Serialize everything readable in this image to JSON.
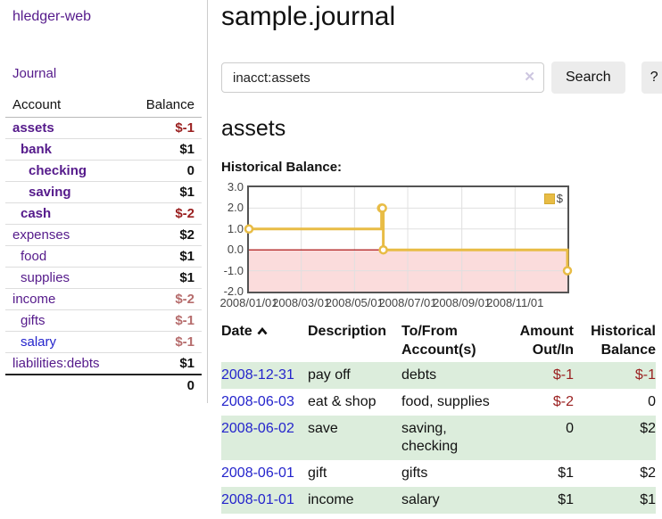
{
  "colors": {
    "purple": "#551a8b",
    "blue": "#2424cc",
    "negative": "#9a1f1f",
    "negative_faded": "#b66c6c",
    "row_green": "#dceddc",
    "chart_line": "#e8bc45",
    "chart_marker_fill": "#ffffff",
    "chart_negative_fill": "#fbdcdc",
    "chart_zero_line": "#a40000",
    "grid_line": "#e0e0e0"
  },
  "sidebar": {
    "brand": "hledger-web",
    "nav_journal": "Journal",
    "col_account": "Account",
    "col_balance": "Balance",
    "accounts": [
      {
        "name": "assets",
        "indent": 0,
        "bold": true,
        "balance": "$-1",
        "balance_style": "neg"
      },
      {
        "name": "bank",
        "indent": 1,
        "bold": true,
        "balance": "$1",
        "balance_style": "pos"
      },
      {
        "name": "checking",
        "indent": 2,
        "bold": true,
        "balance": "0",
        "balance_style": "pos"
      },
      {
        "name": "saving",
        "indent": 2,
        "bold": true,
        "balance": "$1",
        "balance_style": "pos"
      },
      {
        "name": "cash",
        "indent": 1,
        "bold": true,
        "balance": "$-2",
        "balance_style": "neg"
      },
      {
        "name": "expenses",
        "indent": 0,
        "bold": false,
        "balance": "$2",
        "balance_style": "pos"
      },
      {
        "name": "food",
        "indent": 1,
        "bold": false,
        "balance": "$1",
        "balance_style": "pos"
      },
      {
        "name": "supplies",
        "indent": 1,
        "bold": false,
        "balance": "$1",
        "balance_style": "pos"
      },
      {
        "name": "income",
        "indent": 0,
        "bold": false,
        "balance": "$-2",
        "balance_style": "negfade"
      },
      {
        "name": "gifts",
        "indent": 1,
        "bold": false,
        "balance": "$-1",
        "balance_style": "negfade"
      },
      {
        "name": "salary",
        "indent": 1,
        "bold": false,
        "link": "blue",
        "balance": "$-1",
        "balance_style": "negfade"
      },
      {
        "name": "liabilities:debts",
        "indent": 0,
        "bold": false,
        "balance": "$1",
        "balance_style": "pos"
      }
    ],
    "total": "0"
  },
  "main": {
    "title": "sample.journal",
    "search": {
      "value": "inacct:assets",
      "clear_icon": "✕",
      "search_button": "Search",
      "help_button": "?"
    },
    "account_heading": "assets",
    "chart_heading": "Historical Balance:"
  },
  "chart_data": {
    "type": "line",
    "line_style": "step-after",
    "title": "Historical Balance:",
    "series": [
      {
        "name": "$",
        "points": [
          {
            "date": "2008-01-01",
            "value": 1
          },
          {
            "date": "2008-06-01",
            "value": 2
          },
          {
            "date": "2008-06-02",
            "value": 2
          },
          {
            "date": "2008-06-03",
            "value": 0
          },
          {
            "date": "2008-12-31",
            "value": -1
          }
        ]
      }
    ],
    "xlim": [
      "2008-01-01",
      "2008-12-31"
    ],
    "ylim": [
      -2,
      3
    ],
    "y_ticks": [
      {
        "label": "3.0",
        "value": 3
      },
      {
        "label": "2.0",
        "value": 2
      },
      {
        "label": "1.0",
        "value": 1
      },
      {
        "label": "0.0",
        "value": 0
      },
      {
        "label": "-1.0",
        "value": -1
      },
      {
        "label": "-2.0",
        "value": -2
      }
    ],
    "x_ticks": [
      {
        "label": "2008/01/01",
        "date": "2008-01-01"
      },
      {
        "label": "2008/03/01",
        "date": "2008-03-01"
      },
      {
        "label": "2008/05/01",
        "date": "2008-05-01"
      },
      {
        "label": "2008/07/01",
        "date": "2008-07-01"
      },
      {
        "label": "2008/09/01",
        "date": "2008-09-01"
      },
      {
        "label": "2008/11/01",
        "date": "2008-11-01"
      }
    ],
    "grid": true,
    "negative_region_fill": true,
    "legend": {
      "label": "$",
      "position": "top-right"
    }
  },
  "register": {
    "headers": {
      "date": "Date",
      "description": "Description",
      "accounts": "To/From Account(s)",
      "amount": "Amount Out/In",
      "balance": "Historical Balance"
    },
    "sort": {
      "column": "date",
      "direction": "asc"
    },
    "rows": [
      {
        "date": "2008-12-31",
        "description": "pay off",
        "accounts": "debts",
        "amount": "$-1",
        "amount_neg": true,
        "balance": "$-1",
        "balance_neg": true,
        "shade": true
      },
      {
        "date": "2008-06-03",
        "description": "eat & shop",
        "accounts": "food, supplies",
        "amount": "$-2",
        "amount_neg": true,
        "balance": "0",
        "balance_neg": false,
        "shade": false
      },
      {
        "date": "2008-06-02",
        "description": "save",
        "accounts": "saving, checking",
        "amount": "0",
        "amount_neg": false,
        "balance": "$2",
        "balance_neg": false,
        "shade": true
      },
      {
        "date": "2008-06-01",
        "description": "gift",
        "accounts": "gifts",
        "amount": "$1",
        "amount_neg": false,
        "balance": "$2",
        "balance_neg": false,
        "shade": false
      },
      {
        "date": "2008-01-01",
        "description": "income",
        "accounts": "salary",
        "amount": "$1",
        "amount_neg": false,
        "balance": "$1",
        "balance_neg": false,
        "shade": true
      }
    ]
  }
}
